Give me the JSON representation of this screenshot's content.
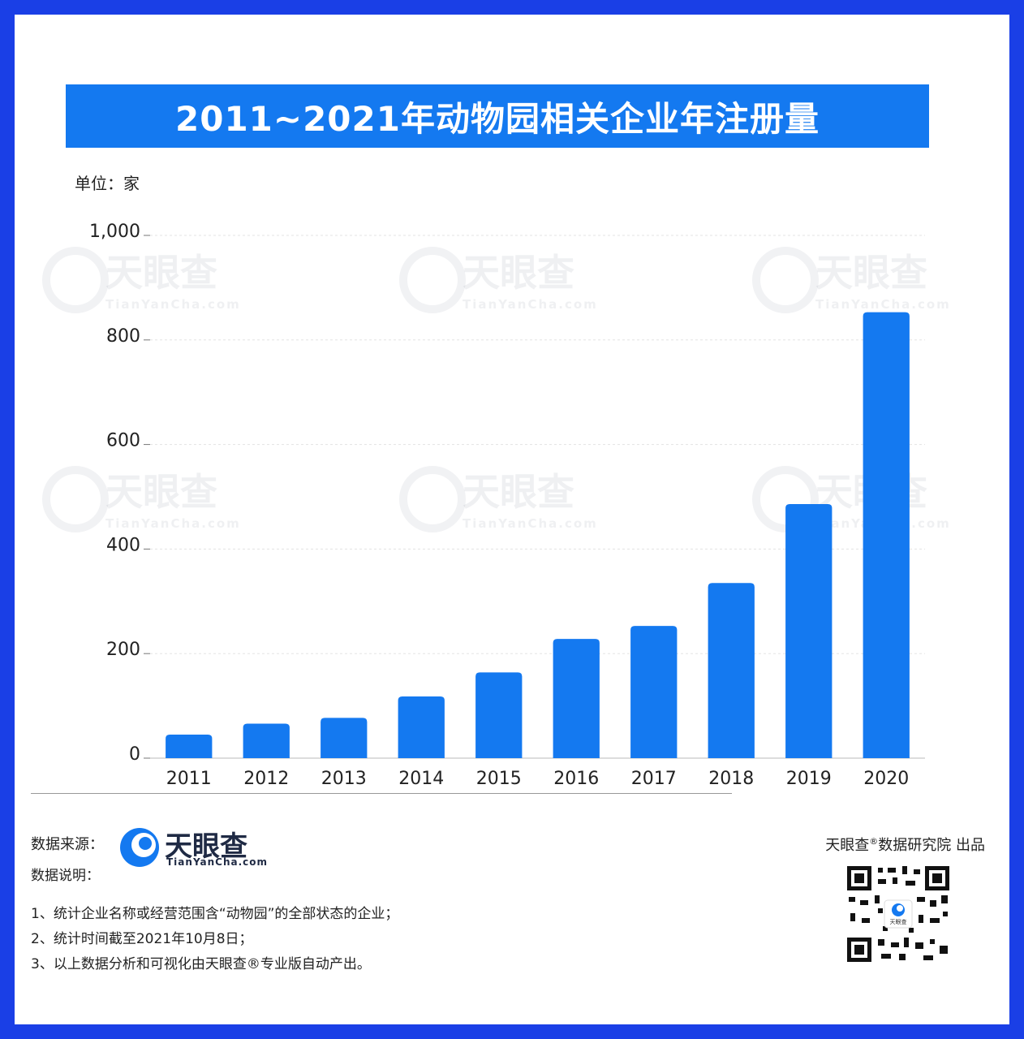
{
  "title": "2011~2021年动物园相关企业年注册量",
  "unit_label": "单位：家",
  "watermark": {
    "main": "天眼查",
    "sub": "TianYanCha.com"
  },
  "chart_data": {
    "type": "bar",
    "title": "2011~2021年动物园相关企业年注册量",
    "xlabel": "",
    "ylabel": "单位：家",
    "categories": [
      "2011",
      "2012",
      "2013",
      "2014",
      "2015",
      "2016",
      "2017",
      "2018",
      "2019",
      "2020"
    ],
    "values": [
      45,
      66,
      77,
      118,
      164,
      228,
      253,
      335,
      486,
      853
    ],
    "ylim": [
      0,
      1000
    ],
    "yticks": [
      0,
      200,
      400,
      600,
      800,
      1000
    ],
    "ytick_labels": [
      "0",
      "200",
      "400",
      "600",
      "800",
      "1,000"
    ],
    "grid": true,
    "bar_color": "#1479f0"
  },
  "footer": {
    "source_label": "数据来源：",
    "logo_text": "天眼查",
    "logo_sub": "TianYanCha.com",
    "notes_title": "数据说明：",
    "notes": [
      "1、统计企业名称或经营范围含“动物园”的全部状态的企业；",
      "2、统计时间截至2021年10月8日；",
      "3、以上数据分析和可视化由天眼查®专业版自动产出。"
    ],
    "credit_brand": "天眼查",
    "credit_mark": "®",
    "credit_rest": "数据研究院 出品",
    "qr_label": "天眼查"
  },
  "colors": {
    "frame": "#1a3fe6",
    "accent": "#1479f0"
  }
}
